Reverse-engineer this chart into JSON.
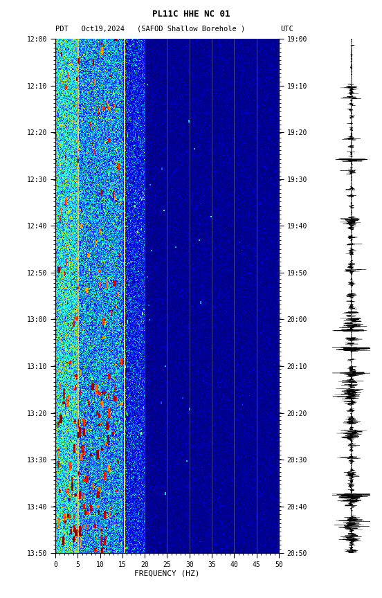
{
  "title_line1": "PL11C HHE NC 01",
  "title_line2_left": "PDT   Oct19,2024",
  "title_line2_center": "(SAFOD Shallow Borehole )",
  "title_line2_right": "UTC",
  "xlabel": "FREQUENCY (HZ)",
  "time_labels_left": [
    "12:00",
    "12:10",
    "12:20",
    "12:30",
    "12:40",
    "12:50",
    "13:00",
    "13:10",
    "13:20",
    "13:30",
    "13:40",
    "13:50"
  ],
  "time_labels_right": [
    "19:00",
    "19:10",
    "19:20",
    "19:30",
    "19:40",
    "19:50",
    "20:00",
    "20:10",
    "20:20",
    "20:30",
    "20:40",
    "20:50"
  ],
  "freq_ticks": [
    0,
    5,
    10,
    15,
    20,
    25,
    30,
    35,
    40,
    45,
    50
  ],
  "freq_grid_lines": [
    5,
    10,
    15,
    20,
    25,
    30,
    35,
    40,
    45
  ],
  "freq_min": 0,
  "freq_max": 50,
  "n_time_steps": 720,
  "n_freq_bins": 500,
  "background_color": "#ffffff",
  "colormap": "jet",
  "fig_width": 5.52,
  "fig_height": 8.64,
  "dpi": 100,
  "font_family": "monospace",
  "orange_lines_freq": [
    5.0,
    15.5
  ],
  "low_freq_cutoff_hz": 15,
  "mid_freq_cutoff_hz": 20,
  "high_freq_cutoff_hz": 50
}
